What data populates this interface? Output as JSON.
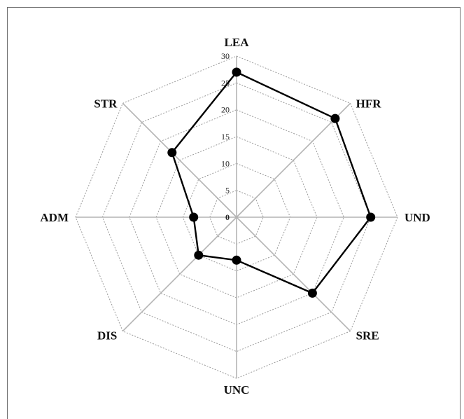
{
  "chart_data": {
    "type": "radar",
    "title": "",
    "axes": [
      "LEA",
      "HFR",
      "UND",
      "SRE",
      "UNC",
      "DIS",
      "ADM",
      "STR"
    ],
    "ticks": [
      0,
      5,
      10,
      15,
      20,
      25,
      30
    ],
    "ylim": [
      0,
      30
    ],
    "grid": true,
    "legend": "none",
    "series": [
      {
        "values": [
          27,
          26,
          25,
          20,
          8,
          10,
          8,
          17
        ]
      }
    ]
  }
}
